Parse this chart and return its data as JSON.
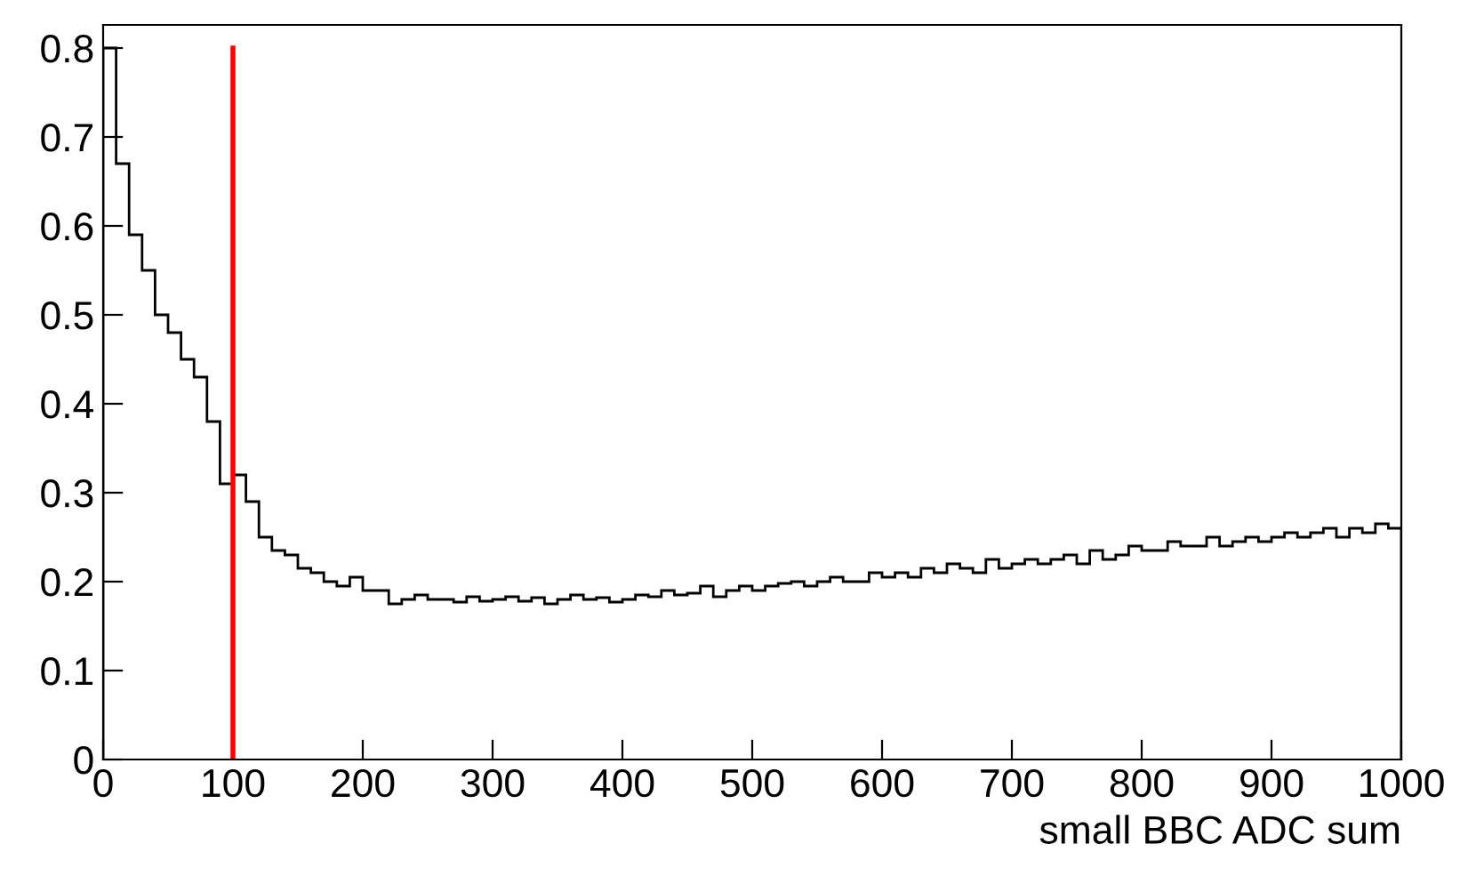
{
  "chart_data": {
    "type": "histogram",
    "xlabel": "small BBC ADC sum",
    "bins": [
      0,
      10,
      20,
      30,
      40,
      50,
      60,
      70,
      80,
      90,
      100,
      110,
      120,
      130,
      140,
      150,
      160,
      170,
      180,
      190,
      200,
      210,
      220,
      230,
      240,
      250,
      260,
      270,
      280,
      290,
      300,
      310,
      320,
      330,
      340,
      350,
      360,
      370,
      380,
      390,
      400,
      410,
      420,
      430,
      440,
      450,
      460,
      470,
      480,
      490,
      500,
      510,
      520,
      530,
      540,
      550,
      560,
      570,
      580,
      590,
      600,
      610,
      620,
      630,
      640,
      650,
      660,
      670,
      680,
      690,
      700,
      710,
      720,
      730,
      740,
      750,
      760,
      770,
      780,
      790,
      800,
      810,
      820,
      830,
      840,
      850,
      860,
      870,
      880,
      890,
      900,
      910,
      920,
      930,
      940,
      950,
      960,
      970,
      980,
      990,
      1000
    ],
    "values": [
      0.8,
      0.67,
      0.59,
      0.55,
      0.5,
      0.48,
      0.45,
      0.43,
      0.38,
      0.31,
      0.32,
      0.29,
      0.25,
      0.235,
      0.23,
      0.215,
      0.21,
      0.2,
      0.195,
      0.205,
      0.19,
      0.19,
      0.175,
      0.18,
      0.185,
      0.18,
      0.18,
      0.177,
      0.183,
      0.178,
      0.18,
      0.183,
      0.178,
      0.182,
      0.175,
      0.18,
      0.185,
      0.18,
      0.182,
      0.177,
      0.18,
      0.185,
      0.183,
      0.19,
      0.185,
      0.187,
      0.195,
      0.183,
      0.19,
      0.195,
      0.19,
      0.195,
      0.198,
      0.2,
      0.195,
      0.2,
      0.205,
      0.2,
      0.2,
      0.21,
      0.205,
      0.21,
      0.205,
      0.215,
      0.21,
      0.22,
      0.215,
      0.21,
      0.225,
      0.215,
      0.22,
      0.225,
      0.22,
      0.225,
      0.23,
      0.22,
      0.235,
      0.225,
      0.23,
      0.24,
      0.235,
      0.235,
      0.245,
      0.24,
      0.24,
      0.25,
      0.24,
      0.245,
      0.25,
      0.245,
      0.25,
      0.255,
      0.25,
      0.255,
      0.26,
      0.25,
      0.26,
      0.255,
      0.265,
      0.26
    ],
    "color": "#000000",
    "xlim": [
      0,
      1000
    ],
    "xticks": [
      0,
      100,
      200,
      300,
      400,
      500,
      600,
      700,
      800,
      900,
      1000
    ],
    "ylim": [
      0,
      0.826
    ],
    "yticks": [
      0,
      0.1,
      0.2,
      0.3,
      0.4,
      0.5,
      0.6,
      0.7,
      0.8
    ],
    "ref_lines": [
      {
        "axis": "x",
        "value": 100,
        "color": "#ff0000"
      }
    ],
    "grid": false,
    "legend": false
  }
}
